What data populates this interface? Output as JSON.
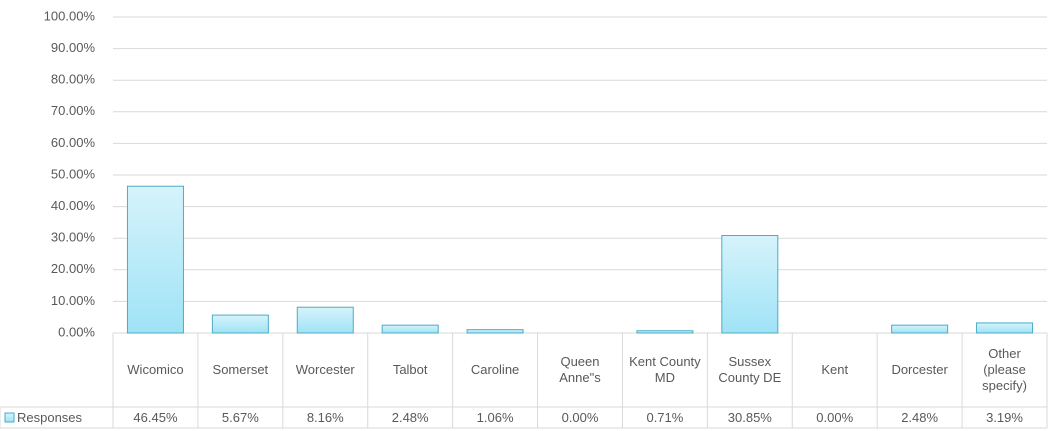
{
  "chart_data": {
    "type": "bar",
    "categories": [
      "Wicomico",
      "Somerset",
      "Worcester",
      "Talbot",
      "Caroline",
      "Queen Anne\"s",
      "Kent County MD",
      "Sussex County DE",
      "Kent",
      "Dorcester",
      "Other (please specify)"
    ],
    "series": [
      {
        "name": "Responses",
        "color": "#4bacc6",
        "values": [
          46.45,
          5.67,
          8.16,
          2.48,
          1.06,
          0.0,
          0.71,
          30.85,
          0.0,
          2.48,
          3.19
        ],
        "value_labels": [
          "46.45%",
          "5.67%",
          "8.16%",
          "2.48%",
          "1.06%",
          "0.00%",
          "0.71%",
          "30.85%",
          "0.00%",
          "2.48%",
          "3.19%"
        ]
      }
    ],
    "ylim": [
      0,
      100
    ],
    "yticks": [
      {
        "value": 0,
        "label": "0.00%"
      },
      {
        "value": 10,
        "label": "10.00%"
      },
      {
        "value": 20,
        "label": "20.00%"
      },
      {
        "value": 30,
        "label": "30.00%"
      },
      {
        "value": 40,
        "label": "40.00%"
      },
      {
        "value": 50,
        "label": "50.00%"
      },
      {
        "value": 60,
        "label": "60.00%"
      },
      {
        "value": 70,
        "label": "70.00%"
      },
      {
        "value": 80,
        "label": "80.00%"
      },
      {
        "value": 90,
        "label": "90.00%"
      },
      {
        "value": 100,
        "label": "100.00%"
      }
    ],
    "grid": true,
    "data_table": true
  }
}
